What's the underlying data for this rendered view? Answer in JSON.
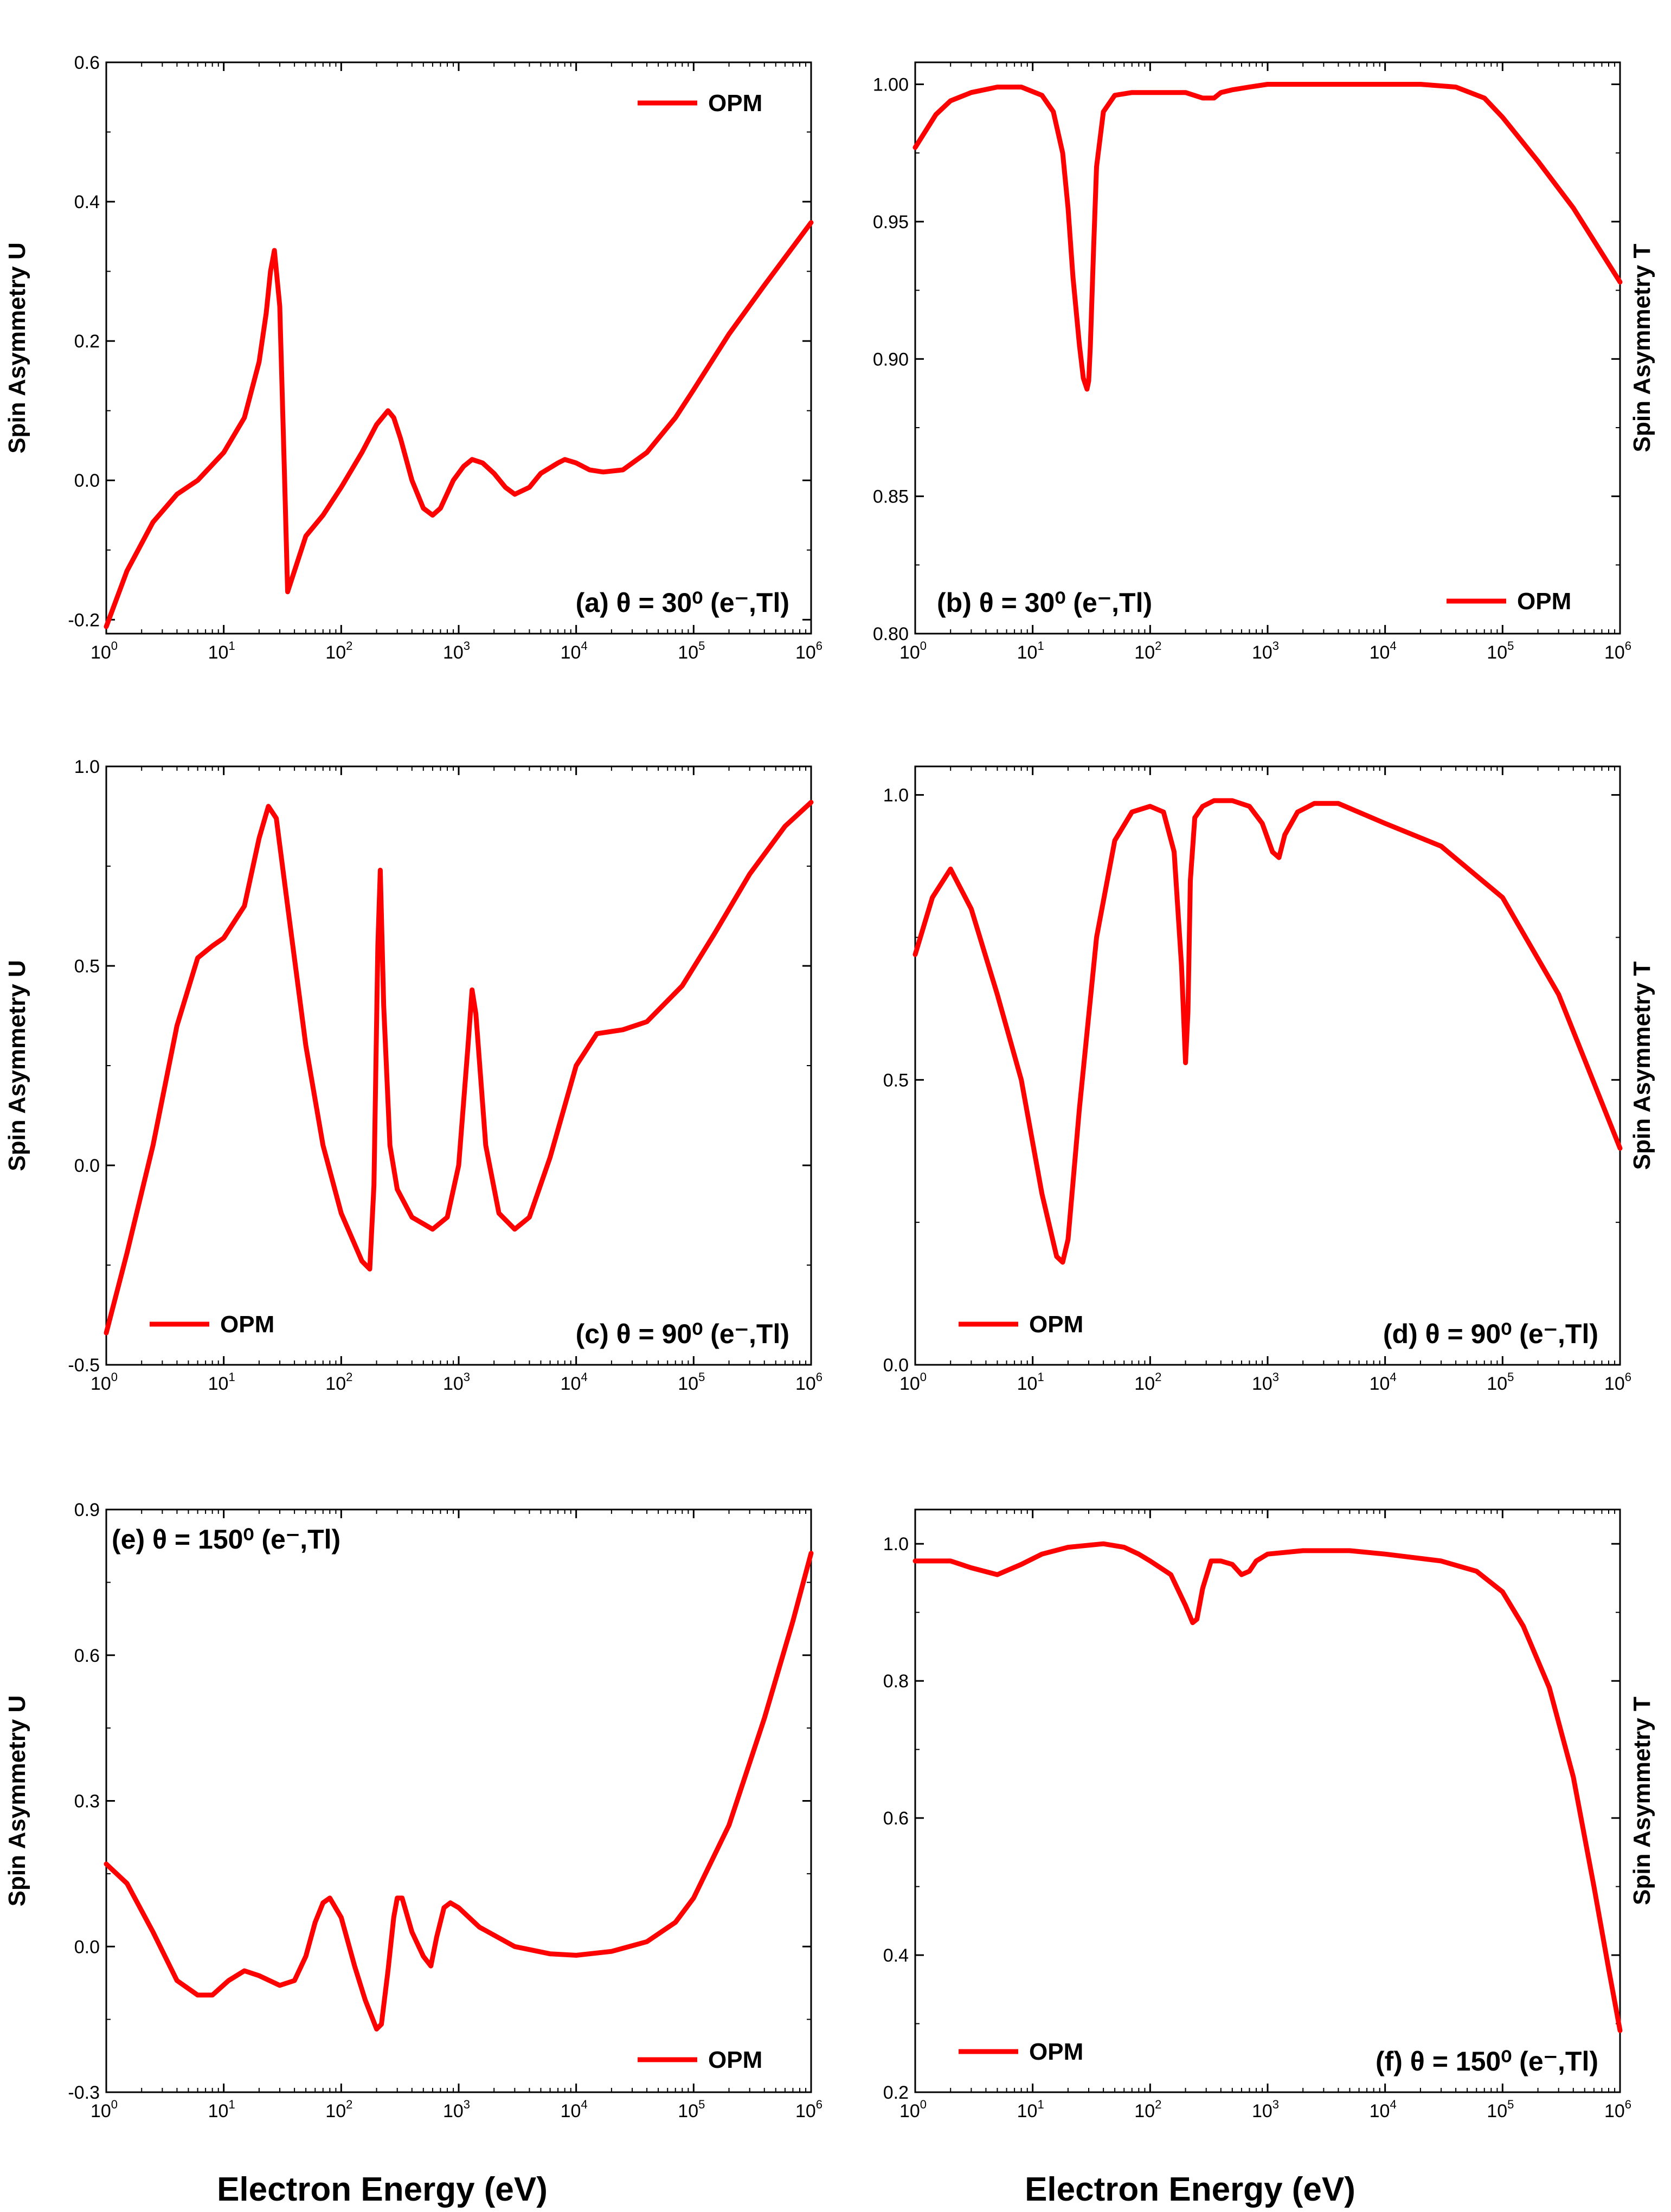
{
  "figure": {
    "xlabel_left": "Electron Energy (eV)",
    "xlabel_right": "Electron Energy (eV)",
    "series_color": "#ff0000"
  },
  "chart_data": [
    {
      "id": "a",
      "type": "line",
      "annotation": "(a) θ = 30⁰ (e⁻,Tl)",
      "ylabel": "Spin Asymmetry U",
      "ylabel_side": "left",
      "legend": "OPM",
      "legend_position": "top-right",
      "annotation_position": "bottom-right",
      "xscale": "log",
      "xlim": [
        1,
        1000000
      ],
      "xticks": [
        {
          "base": "10",
          "exp": "0"
        },
        {
          "base": "10",
          "exp": "1"
        },
        {
          "base": "10",
          "exp": "2"
        },
        {
          "base": "10",
          "exp": "3"
        },
        {
          "base": "10",
          "exp": "4"
        },
        {
          "base": "10",
          "exp": "5"
        },
        {
          "base": "10",
          "exp": "6"
        }
      ],
      "ylim": [
        -0.22,
        0.6
      ],
      "yticks": [
        -0.2,
        0.0,
        0.2,
        0.4,
        0.6
      ],
      "ytick_labels": [
        "-0.2",
        "0.0",
        "0.2",
        "0.4",
        "0.6"
      ],
      "series": [
        {
          "name": "OPM",
          "x": [
            1,
            1.5,
            2.5,
            4,
            6,
            10,
            15,
            20,
            23,
            25,
            27,
            30,
            33,
            35,
            40,
            50,
            70,
            100,
            150,
            200,
            250,
            280,
            320,
            400,
            500,
            600,
            700,
            900,
            1100,
            1300,
            1600,
            2000,
            2500,
            3000,
            4000,
            5000,
            7000,
            8000,
            10000,
            13000,
            17000,
            25000,
            40000,
            70000,
            100000,
            200000,
            400000,
            1000000
          ],
          "y": [
            -0.21,
            -0.13,
            -0.06,
            -0.02,
            0.0,
            0.04,
            0.09,
            0.17,
            0.24,
            0.3,
            0.33,
            0.25,
            0.0,
            -0.16,
            -0.13,
            -0.08,
            -0.05,
            -0.01,
            0.04,
            0.08,
            0.1,
            0.09,
            0.06,
            0.0,
            -0.04,
            -0.05,
            -0.04,
            0.0,
            0.02,
            0.03,
            0.025,
            0.01,
            -0.01,
            -0.02,
            -0.01,
            0.01,
            0.025,
            0.03,
            0.025,
            0.015,
            0.012,
            0.015,
            0.04,
            0.09,
            0.13,
            0.21,
            0.28,
            0.37
          ]
        }
      ]
    },
    {
      "id": "b",
      "type": "line",
      "annotation": "(b) θ = 30⁰ (e⁻,Tl)",
      "ylabel": "Spin Asymmetry T",
      "ylabel_side": "right",
      "legend": "OPM",
      "legend_position": "bottom-right",
      "annotation_position": "bottom-left",
      "xscale": "log",
      "xlim": [
        1,
        1000000
      ],
      "xticks": [
        {
          "base": "10",
          "exp": "0"
        },
        {
          "base": "10",
          "exp": "1"
        },
        {
          "base": "10",
          "exp": "2"
        },
        {
          "base": "10",
          "exp": "3"
        },
        {
          "base": "10",
          "exp": "4"
        },
        {
          "base": "10",
          "exp": "5"
        },
        {
          "base": "10",
          "exp": "6"
        }
      ],
      "ylim": [
        0.8,
        1.008
      ],
      "yticks": [
        0.8,
        0.85,
        0.9,
        0.95,
        1.0
      ],
      "ytick_labels": [
        "0.80",
        "0.85",
        "0.90",
        "0.95",
        "1.00"
      ],
      "series": [
        {
          "name": "OPM",
          "x": [
            1,
            1.5,
            2,
            3,
            5,
            8,
            12,
            15,
            18,
            20,
            22,
            25,
            27,
            29,
            30,
            31,
            33,
            35,
            40,
            50,
            70,
            100,
            200,
            280,
            350,
            400,
            500,
            700,
            1000,
            3000,
            10000,
            20000,
            40000,
            70000,
            100000,
            200000,
            400000,
            1000000
          ],
          "y": [
            0.977,
            0.989,
            0.994,
            0.997,
            0.999,
            0.999,
            0.996,
            0.99,
            0.975,
            0.955,
            0.93,
            0.905,
            0.893,
            0.889,
            0.892,
            0.905,
            0.94,
            0.97,
            0.99,
            0.996,
            0.997,
            0.997,
            0.997,
            0.995,
            0.995,
            0.997,
            0.998,
            0.999,
            1.0,
            1.0,
            1.0,
            1.0,
            0.999,
            0.995,
            0.988,
            0.972,
            0.955,
            0.928
          ]
        }
      ]
    },
    {
      "id": "c",
      "type": "line",
      "annotation": "(c) θ = 90⁰ (e⁻,Tl)",
      "ylabel": "Spin Asymmetry U",
      "ylabel_side": "left",
      "legend": "OPM",
      "legend_position": "bottom-left",
      "annotation_position": "bottom-right",
      "xscale": "log",
      "xlim": [
        1,
        1000000
      ],
      "xticks": [
        {
          "base": "10",
          "exp": "0"
        },
        {
          "base": "10",
          "exp": "1"
        },
        {
          "base": "10",
          "exp": "2"
        },
        {
          "base": "10",
          "exp": "3"
        },
        {
          "base": "10",
          "exp": "4"
        },
        {
          "base": "10",
          "exp": "5"
        },
        {
          "base": "10",
          "exp": "6"
        }
      ],
      "ylim": [
        -0.5,
        1.0
      ],
      "yticks": [
        -0.5,
        0.0,
        0.5,
        1.0
      ],
      "ytick_labels": [
        "-0.5",
        "0.0",
        "0.5",
        "1.0"
      ],
      "series": [
        {
          "name": "OPM",
          "x": [
            1,
            1.5,
            2.5,
            4,
            6,
            8,
            10,
            15,
            20,
            24,
            28,
            35,
            50,
            70,
            100,
            150,
            175,
            190,
            205,
            215,
            230,
            260,
            300,
            400,
            600,
            800,
            1000,
            1200,
            1300,
            1400,
            1700,
            2200,
            3000,
            4000,
            6000,
            10000,
            15000,
            25000,
            40000,
            80000,
            150000,
            300000,
            600000,
            1000000
          ],
          "y": [
            -0.42,
            -0.22,
            0.05,
            0.35,
            0.52,
            0.55,
            0.57,
            0.65,
            0.82,
            0.9,
            0.87,
            0.65,
            0.3,
            0.05,
            -0.12,
            -0.24,
            -0.26,
            -0.05,
            0.55,
            0.74,
            0.4,
            0.05,
            -0.06,
            -0.13,
            -0.16,
            -0.13,
            0.0,
            0.3,
            0.44,
            0.38,
            0.05,
            -0.12,
            -0.16,
            -0.13,
            0.02,
            0.25,
            0.33,
            0.34,
            0.36,
            0.45,
            0.58,
            0.73,
            0.85,
            0.91
          ]
        }
      ]
    },
    {
      "id": "d",
      "type": "line",
      "annotation": "(d) θ = 90⁰ (e⁻,Tl)",
      "ylabel": "Spin Asymmetry T",
      "ylabel_side": "right",
      "legend": "OPM",
      "legend_position": "bottom-left",
      "annotation_position": "bottom-right",
      "xscale": "log",
      "xlim": [
        1,
        1000000
      ],
      "xticks": [
        {
          "base": "10",
          "exp": "0"
        },
        {
          "base": "10",
          "exp": "1"
        },
        {
          "base": "10",
          "exp": "2"
        },
        {
          "base": "10",
          "exp": "3"
        },
        {
          "base": "10",
          "exp": "4"
        },
        {
          "base": "10",
          "exp": "5"
        },
        {
          "base": "10",
          "exp": "6"
        }
      ],
      "ylim": [
        0.0,
        1.05
      ],
      "yticks": [
        0.0,
        0.5,
        1.0
      ],
      "ytick_labels": [
        "0.0",
        "0.5",
        "1.0"
      ],
      "series": [
        {
          "name": "OPM",
          "x": [
            1,
            1.4,
            2,
            3,
            5,
            8,
            12,
            16,
            18,
            20,
            25,
            35,
            50,
            70,
            100,
            130,
            160,
            185,
            200,
            210,
            220,
            240,
            280,
            350,
            500,
            700,
            900,
            1100,
            1250,
            1400,
            1800,
            2500,
            4000,
            10000,
            30000,
            100000,
            300000,
            1000000
          ],
          "y": [
            0.72,
            0.82,
            0.87,
            0.8,
            0.65,
            0.5,
            0.3,
            0.19,
            0.18,
            0.22,
            0.45,
            0.75,
            0.92,
            0.97,
            0.98,
            0.97,
            0.9,
            0.7,
            0.53,
            0.62,
            0.85,
            0.96,
            0.98,
            0.99,
            0.99,
            0.98,
            0.95,
            0.9,
            0.89,
            0.93,
            0.97,
            0.985,
            0.985,
            0.95,
            0.91,
            0.82,
            0.65,
            0.38
          ]
        }
      ]
    },
    {
      "id": "e",
      "type": "line",
      "annotation": "(e) θ = 150⁰ (e⁻,Tl)",
      "ylabel": "Spin Asymmetry U",
      "ylabel_side": "left",
      "legend": "OPM",
      "legend_position": "bottom-right",
      "annotation_position": "top-left",
      "xscale": "log",
      "xlim": [
        1,
        1000000
      ],
      "xticks": [
        {
          "base": "10",
          "exp": "0"
        },
        {
          "base": "10",
          "exp": "1"
        },
        {
          "base": "10",
          "exp": "2"
        },
        {
          "base": "10",
          "exp": "3"
        },
        {
          "base": "10",
          "exp": "4"
        },
        {
          "base": "10",
          "exp": "5"
        },
        {
          "base": "10",
          "exp": "6"
        }
      ],
      "ylim": [
        -0.3,
        0.9
      ],
      "yticks": [
        -0.3,
        0.0,
        0.3,
        0.6,
        0.9
      ],
      "ytick_labels": [
        "-0.3",
        "0.0",
        "0.3",
        "0.6",
        "0.9"
      ],
      "series": [
        {
          "name": "OPM",
          "x": [
            1,
            1.5,
            2.5,
            4,
            6,
            8,
            11,
            15,
            20,
            30,
            40,
            50,
            60,
            70,
            80,
            100,
            130,
            160,
            200,
            220,
            250,
            280,
            300,
            330,
            400,
            500,
            580,
            650,
            750,
            850,
            1000,
            1500,
            3000,
            6000,
            10000,
            20000,
            40000,
            70000,
            100000,
            200000,
            400000,
            700000,
            1000000
          ],
          "y": [
            0.17,
            0.13,
            0.03,
            -0.07,
            -0.1,
            -0.1,
            -0.07,
            -0.05,
            -0.06,
            -0.08,
            -0.07,
            -0.02,
            0.05,
            0.09,
            0.1,
            0.06,
            -0.04,
            -0.11,
            -0.17,
            -0.16,
            -0.05,
            0.06,
            0.1,
            0.1,
            0.03,
            -0.02,
            -0.04,
            0.02,
            0.08,
            0.09,
            0.08,
            0.04,
            0.0,
            -0.015,
            -0.018,
            -0.01,
            0.01,
            0.05,
            0.1,
            0.25,
            0.47,
            0.67,
            0.81
          ]
        }
      ]
    },
    {
      "id": "f",
      "type": "line",
      "annotation": "(f) θ = 150⁰ (e⁻,Tl)",
      "ylabel": "Spin Asymmetry T",
      "ylabel_side": "right",
      "legend": "OPM",
      "legend_position": "bottom-left",
      "annotation_position": "bottom-right",
      "xscale": "log",
      "xlim": [
        1,
        1000000
      ],
      "xticks": [
        {
          "base": "10",
          "exp": "0"
        },
        {
          "base": "10",
          "exp": "1"
        },
        {
          "base": "10",
          "exp": "2"
        },
        {
          "base": "10",
          "exp": "3"
        },
        {
          "base": "10",
          "exp": "4"
        },
        {
          "base": "10",
          "exp": "5"
        },
        {
          "base": "10",
          "exp": "6"
        }
      ],
      "ylim": [
        0.2,
        1.05
      ],
      "yticks": [
        0.2,
        0.4,
        0.6,
        0.8,
        1.0
      ],
      "ytick_labels": [
        "0.2",
        "0.4",
        "0.6",
        "0.8",
        "1.0"
      ],
      "series": [
        {
          "name": "OPM",
          "x": [
            1,
            2,
            3,
            5,
            8,
            12,
            20,
            40,
            60,
            80,
            100,
            150,
            200,
            230,
            250,
            280,
            330,
            400,
            500,
            600,
            700,
            800,
            1000,
            2000,
            5000,
            10000,
            30000,
            60000,
            100000,
            150000,
            250000,
            400000,
            600000,
            800000,
            1000000
          ],
          "y": [
            0.975,
            0.975,
            0.965,
            0.955,
            0.97,
            0.985,
            0.995,
            1.0,
            0.995,
            0.985,
            0.975,
            0.955,
            0.91,
            0.885,
            0.89,
            0.935,
            0.975,
            0.975,
            0.97,
            0.955,
            0.96,
            0.975,
            0.985,
            0.99,
            0.99,
            0.985,
            0.975,
            0.96,
            0.93,
            0.88,
            0.79,
            0.66,
            0.5,
            0.38,
            0.29
          ]
        }
      ]
    }
  ]
}
